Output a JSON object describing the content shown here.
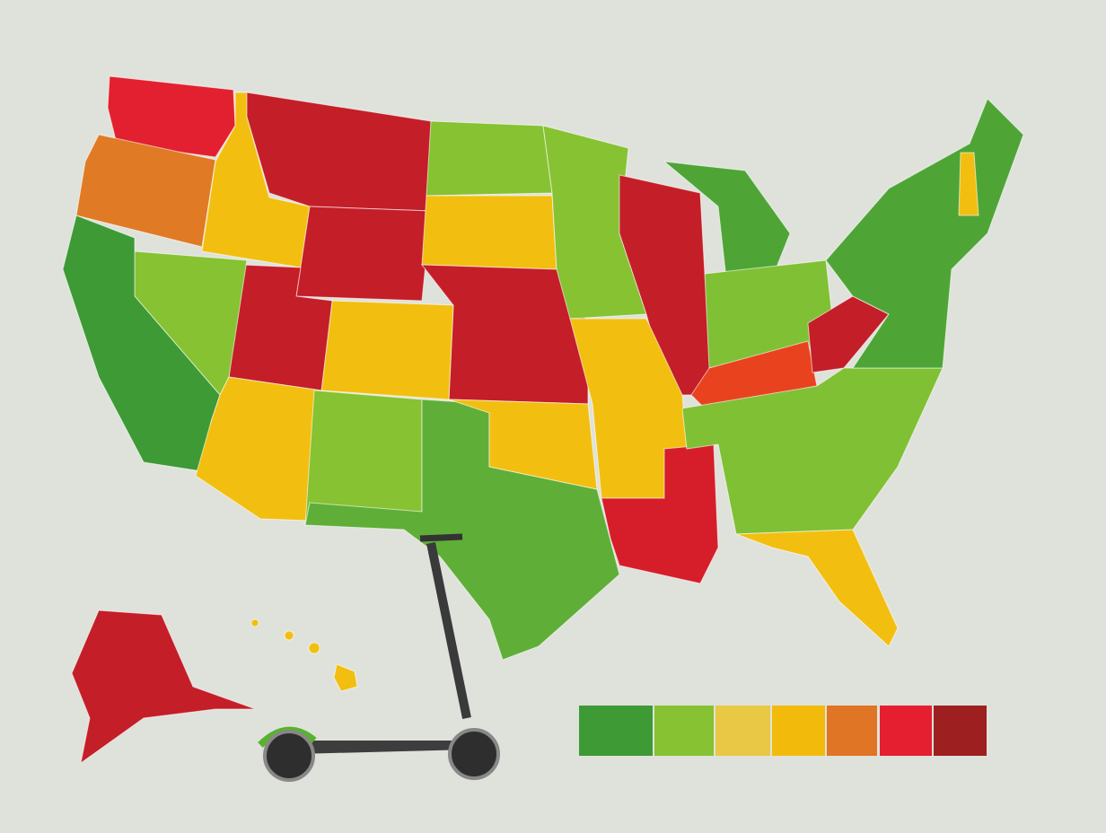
{
  "legend": {
    "colors": [
      "#3d9a35",
      "#86c232",
      "#e8c844",
      "#f2bb0c",
      "#e07525",
      "#e51f30",
      "#9e1f1f"
    ]
  }
}
